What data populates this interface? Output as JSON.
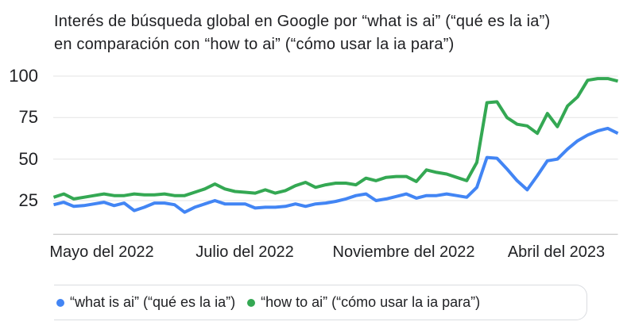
{
  "title": {
    "line1": "Interés de búsqueda global en Google por “what is ai” (“qué es la ia”)",
    "line2": "en comparación con “how to ai” (“cómo usar la ia para”)"
  },
  "chart_data": {
    "type": "line",
    "title": "Interés de búsqueda global en Google por “what is ai” (“qué es la ia”) en comparación con “how to ai” (“cómo usar la ia para”)",
    "grid": true,
    "legend_position": "bottom",
    "ylim": [
      0,
      100
    ],
    "yticks": [
      100,
      75,
      50,
      25
    ],
    "xticks": [
      "Mayo del 2022",
      "Julio del 2022",
      "Noviembre del 2022",
      "Abril del 2023"
    ],
    "x_unit": "semana",
    "series": [
      {
        "id": "what-is-ai",
        "name": "“what is ai” (“qué es la ia”)",
        "color": "#4285f4",
        "values": [
          22.5,
          24,
          21.5,
          22,
          23,
          24,
          22,
          23.5,
          19,
          21,
          23.5,
          23.5,
          22.5,
          18,
          21,
          23,
          25,
          23,
          23,
          23,
          20.5,
          21,
          21,
          21.5,
          23,
          21.5,
          23,
          23.5,
          24.5,
          26,
          28,
          29,
          25,
          26,
          27.5,
          29,
          26.5,
          28,
          28,
          29,
          28,
          27,
          33,
          51,
          50.5,
          44,
          37,
          31.5,
          40,
          49,
          50,
          56,
          61,
          64.5,
          67,
          68.5,
          65.5
        ]
      },
      {
        "id": "how-to-ai",
        "name": "“how to ai” (“cómo usar la ia para”)",
        "color": "#34a853",
        "values": [
          27,
          29,
          26,
          27,
          28,
          29,
          28,
          28,
          29,
          28.5,
          28.5,
          29,
          28,
          28,
          30,
          32,
          35,
          32,
          30.5,
          30,
          29.5,
          31.5,
          29.5,
          31,
          34,
          36,
          33,
          34.5,
          35.5,
          35.5,
          34.5,
          38.5,
          37,
          39,
          39.5,
          39.5,
          36.5,
          43.5,
          42,
          41,
          39,
          37,
          48,
          84,
          84.5,
          75,
          71,
          70,
          65.5,
          77.5,
          69.5,
          82,
          87.5,
          97.5,
          98.5,
          98.5,
          97
        ]
      }
    ]
  }
}
